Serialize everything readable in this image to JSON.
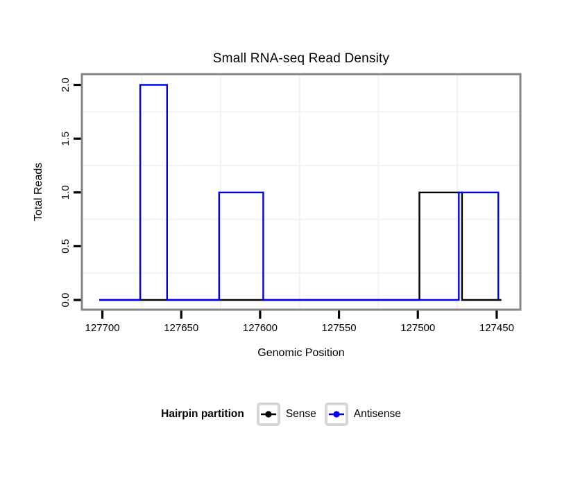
{
  "chart_data": {
    "type": "line",
    "subtype": "step",
    "title": "Small RNA-seq Read Density",
    "xlabel": "Genomic Position",
    "ylabel": "Total Reads",
    "x_axis_reversed": true,
    "xlim": [
      127713,
      127435
    ],
    "ylim": [
      -0.09,
      2.1
    ],
    "x_ticks": [
      127700,
      127650,
      127600,
      127550,
      127500,
      127450
    ],
    "x_tick_labels": [
      "127700",
      "127650",
      "127600",
      "127550",
      "127500",
      "127450"
    ],
    "y_ticks": [
      0,
      0.5,
      1,
      1.5,
      2
    ],
    "y_tick_labels": [
      "0.0",
      "0.5",
      "1.0",
      "1.5",
      "2.0"
    ],
    "x_minor_gridlines": [
      127675,
      127625,
      127575,
      127525,
      127475
    ],
    "y_minor_gridlines": [
      0.25,
      0.75,
      1.25,
      1.75
    ],
    "grid": "minor-only",
    "legend_position": "bottom",
    "series": [
      {
        "name": "Sense",
        "color": "#000000",
        "points": [
          [
            127702,
            0
          ],
          [
            127499,
            0
          ],
          [
            127499,
            1
          ],
          [
            127472,
            1
          ],
          [
            127472,
            0
          ],
          [
            127447,
            0
          ]
        ]
      },
      {
        "name": "Antisense",
        "color": "#0000ee",
        "points": [
          [
            127702,
            0
          ],
          [
            127676,
            0
          ],
          [
            127676,
            2
          ],
          [
            127659,
            2
          ],
          [
            127659,
            0
          ],
          [
            127626,
            0
          ],
          [
            127626,
            1
          ],
          [
            127598,
            1
          ],
          [
            127598,
            0
          ],
          [
            127474,
            0
          ],
          [
            127474,
            1
          ],
          [
            127449,
            1
          ],
          [
            127449,
            0
          ]
        ]
      }
    ],
    "legend": {
      "title": "Hairpin partition",
      "entries": [
        {
          "label": "Sense",
          "color": "#000000"
        },
        {
          "label": "Antisense",
          "color": "#0000ee"
        }
      ]
    },
    "colors": {
      "panel_border": "#858585",
      "minor_grid": "#f2f2f2",
      "tick": "#000000",
      "legend_key_border": "#d6d6d6",
      "background": "#ffffff"
    }
  }
}
